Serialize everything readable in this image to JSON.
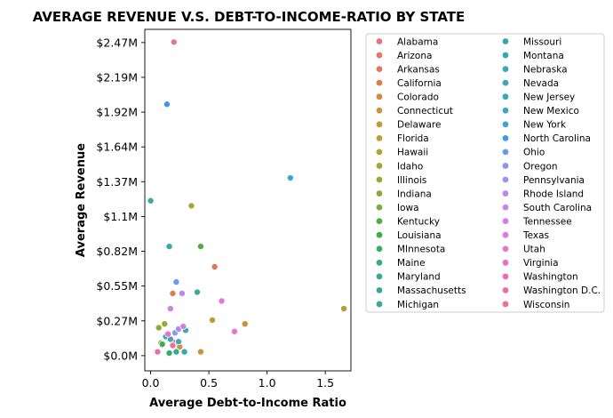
{
  "chart_data": {
    "type": "scatter",
    "title": "AVERAGE REVENUE V.S. DEBT-TO-INCOME-RATIO BY STATE",
    "xlabel": "Average Debt-to-Income Ratio",
    "ylabel": "Average Revenue",
    "xlim": [
      -0.05,
      1.72
    ],
    "ylim": [
      -120000,
      2570000
    ],
    "x_ticks": [
      0.0,
      0.5,
      1.0,
      1.5
    ],
    "x_tick_labels": [
      "0.0",
      "0.5",
      "1.0",
      "1.5"
    ],
    "y_ticks": [
      0,
      274000,
      548000,
      822000,
      1096000,
      1370000,
      1644000,
      1918000,
      2192000,
      2466000
    ],
    "y_tick_labels": [
      "$0.0M",
      "$0.27M",
      "$0.55M",
      "$0.82M",
      "$1.1M",
      "$1.37M",
      "$1.64M",
      "$1.92M",
      "$2.19M",
      "$2.47M"
    ],
    "grid": false,
    "legend_position": "outside-right",
    "legend_columns": 2,
    "series": [
      {
        "name": "Alabama",
        "color": "#e8737c",
        "x": 0.21,
        "y": 90000
      },
      {
        "name": "Arizona",
        "color": "#e9756c",
        "x": 0.19,
        "y": 110000
      },
      {
        "name": "Arkansas",
        "color": "#e5785a",
        "x": 0.55,
        "y": 700000
      },
      {
        "name": "California",
        "color": "#e07d45",
        "x": 0.19,
        "y": 490000
      },
      {
        "name": "Colorado",
        "color": "#d58b3e",
        "x": 0.81,
        "y": 250000
      },
      {
        "name": "Connecticut",
        "color": "#cf913c",
        "x": 0.25,
        "y": 70000
      },
      {
        "name": "Delaware",
        "color": "#c89538",
        "x": 0.43,
        "y": 30000
      },
      {
        "name": "Florida",
        "color": "#bf9a36",
        "x": 0.53,
        "y": 280000
      },
      {
        "name": "Hawaii",
        "color": "#b5a034",
        "x": 1.66,
        "y": 370000
      },
      {
        "name": "Idaho",
        "color": "#a8a434",
        "x": 0.35,
        "y": 1180000
      },
      {
        "name": "Illinois",
        "color": "#9ca736",
        "x": 0.12,
        "y": 250000
      },
      {
        "name": "Indiana",
        "color": "#8fa838",
        "x": 0.07,
        "y": 220000
      },
      {
        "name": "Iowa",
        "color": "#7dac3a",
        "x": 0.09,
        "y": 100000
      },
      {
        "name": "Kentucky",
        "color": "#55ad3c",
        "x": 0.43,
        "y": 860000
      },
      {
        "name": "Louisiana",
        "color": "#3aad4c",
        "x": 0.1,
        "y": 90000
      },
      {
        "name": "MInnesota",
        "color": "#34ad6a",
        "x": 0.16,
        "y": 20000
      },
      {
        "name": "Maine",
        "color": "#36ac80",
        "x": 0.14,
        "y": 170000
      },
      {
        "name": "Maryland",
        "color": "#37ab8f",
        "x": 0.22,
        "y": 30000
      },
      {
        "name": "Massachusetts",
        "color": "#38aa9c",
        "x": 0.4,
        "y": 500000
      },
      {
        "name": "Michigan",
        "color": "#38a9a4",
        "x": 0.0,
        "y": 1220000
      },
      {
        "name": "Missouri",
        "color": "#38a8a8",
        "x": 0.16,
        "y": 860000
      },
      {
        "name": "Montana",
        "color": "#39a8ad",
        "x": 0.29,
        "y": 30000
      },
      {
        "name": "Nebraska",
        "color": "#3aa8b1",
        "x": 0.13,
        "y": 150000
      },
      {
        "name": "Nevada",
        "color": "#3ba7b6",
        "x": 0.3,
        "y": 200000
      },
      {
        "name": "New Jersey",
        "color": "#3ca7bc",
        "x": 0.17,
        "y": 130000
      },
      {
        "name": "New Mexico",
        "color": "#3da6c3",
        "x": 0.24,
        "y": 110000
      },
      {
        "name": "New York",
        "color": "#3da5d1",
        "x": 1.2,
        "y": 1400000
      },
      {
        "name": "North Carolina",
        "color": "#4399df",
        "x": 0.14,
        "y": 1980000
      },
      {
        "name": "Ohio",
        "color": "#6a9bea",
        "x": 0.22,
        "y": 580000
      },
      {
        "name": "Oregon",
        "color": "#8c96ea",
        "x": 0.21,
        "y": 180000
      },
      {
        "name": "Pennsylvania",
        "color": "#a48feb",
        "x": 0.24,
        "y": 210000
      },
      {
        "name": "Rhode Island",
        "color": "#b88be9",
        "x": 0.27,
        "y": 490000
      },
      {
        "name": "South Carolina",
        "color": "#c985e6",
        "x": 0.17,
        "y": 370000
      },
      {
        "name": "Tennessee",
        "color": "#d47ee2",
        "x": 0.28,
        "y": 230000
      },
      {
        "name": "Texas",
        "color": "#df79db",
        "x": 0.61,
        "y": 430000
      },
      {
        "name": "Utah",
        "color": "#e376d1",
        "x": 0.72,
        "y": 190000
      },
      {
        "name": "Virginia",
        "color": "#e473c3",
        "x": 0.15,
        "y": 170000
      },
      {
        "name": "Washington",
        "color": "#e670b2",
        "x": 0.06,
        "y": 30000
      },
      {
        "name": "Washington D.C.",
        "color": "#e76fa2",
        "x": 0.19,
        "y": 80000
      },
      {
        "name": "Wisconsin",
        "color": "#e87292",
        "x": 0.2,
        "y": 2470000
      }
    ]
  }
}
